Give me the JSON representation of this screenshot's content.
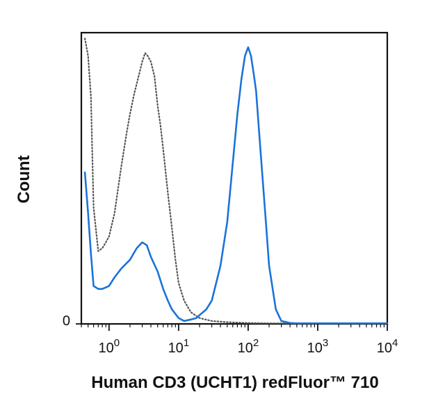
{
  "chart_data": {
    "type": "line",
    "title": "",
    "xlabel": "Human CD3 (UCHT1) redFluor™ 710",
    "ylabel": "Count",
    "x_scale": "log",
    "xlim": [
      0.4,
      10000
    ],
    "ylim": [
      0,
      100
    ],
    "grid": false,
    "x_ticks": [
      {
        "value": 1,
        "base": "10",
        "exp": "0"
      },
      {
        "value": 10,
        "base": "10",
        "exp": "1"
      },
      {
        "value": 100,
        "base": "10",
        "exp": "2"
      },
      {
        "value": 1000,
        "base": "10",
        "exp": "3"
      },
      {
        "value": 10000,
        "base": "10",
        "exp": "4"
      }
    ],
    "y_ticks": [
      {
        "value": 0,
        "label": "0"
      }
    ],
    "series": [
      {
        "style": "dotted",
        "color": "#555555",
        "x": [
          0.45,
          0.5,
          0.55,
          0.6,
          0.7,
          0.8,
          0.9,
          1.0,
          1.2,
          1.5,
          1.8,
          2.0,
          2.3,
          2.6,
          3.0,
          3.3,
          3.6,
          4.0,
          4.5,
          5.0,
          5.5,
          6.0,
          7.0,
          8.0,
          9.0,
          10,
          12,
          15,
          20,
          30,
          50,
          100,
          200,
          1000,
          10000
        ],
        "y": [
          98,
          92,
          78,
          40,
          25,
          26,
          28,
          30,
          38,
          54,
          66,
          72,
          79,
          84,
          90,
          93,
          92,
          90,
          85,
          75,
          68,
          60,
          45,
          33,
          22,
          14,
          8,
          4,
          2,
          1,
          0.6,
          0.3,
          0.2,
          0.2,
          0.2
        ]
      },
      {
        "style": "solid",
        "color": "#1a73d9",
        "x": [
          0.45,
          0.5,
          0.55,
          0.6,
          0.7,
          0.8,
          1.0,
          1.2,
          1.5,
          2.0,
          2.5,
          3.0,
          3.5,
          4.0,
          5.0,
          6.0,
          7.0,
          8.0,
          10,
          12,
          15,
          18,
          20,
          25,
          30,
          40,
          50,
          60,
          70,
          80,
          90,
          100,
          110,
          120,
          130,
          150,
          180,
          200,
          250,
          300,
          400,
          500,
          1000,
          10000
        ],
        "y": [
          52,
          38,
          24,
          13,
          12,
          12,
          13,
          16,
          19,
          22,
          26,
          28,
          27,
          23,
          18,
          12,
          8,
          5,
          2,
          1,
          1.5,
          2,
          3,
          5,
          8,
          20,
          35,
          55,
          72,
          84,
          92,
          95,
          92,
          86,
          80,
          60,
          35,
          20,
          5,
          1,
          0.3,
          0.2,
          0.2,
          0.2
        ]
      }
    ]
  }
}
